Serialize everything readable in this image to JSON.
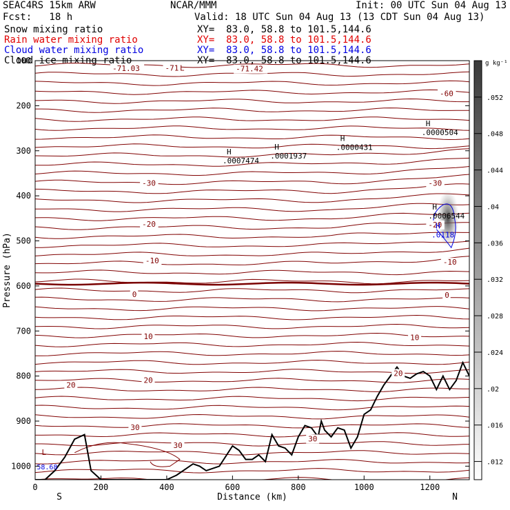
{
  "header": {
    "model": "SEAC4RS 15km ARW",
    "org": "NCAR/MMM",
    "init": "Init: 00 UTC Sun 04 Aug 13",
    "fcst": "Fcst:   18 h",
    "valid": "Valid: 18 UTC Sun 04 Aug 13 (13 CDT Sun 04 Aug 13)",
    "fields": [
      {
        "name": "Snow mixing ratio",
        "xy": "XY=  83.0, 58.8 to 101.5,144.6",
        "color": "#000000"
      },
      {
        "name": "Rain water mixing ratio",
        "xy": "XY=  83.0, 58.8 to 101.5,144.6",
        "color": "#e00000"
      },
      {
        "name": "Cloud water mixing ratio",
        "xy": "XY=  83.0, 58.8 to 101.5,144.6",
        "color": "#0000e0"
      },
      {
        "name": "Cloud ice mixing ratio",
        "xy": "XY=  83.0, 58.8 to 101.5,144.6",
        "color": "#000000"
      }
    ]
  },
  "chart_data": {
    "type": "cross-section",
    "xlabel": "Distance (km)",
    "ylabel": "Pressure (hPa)",
    "xlim": [
      0,
      1320
    ],
    "ylim": [
      1030,
      100
    ],
    "x_ticks": [
      0,
      200,
      400,
      600,
      800,
      1000,
      1200
    ],
    "y_ticks": [
      100,
      200,
      300,
      400,
      500,
      600,
      700,
      800,
      900,
      1000
    ],
    "direction_labels": {
      "left": "S",
      "right": "N"
    },
    "colorbar": {
      "unit": "g kg⁻¹",
      "ticks": [
        ".012",
        ".016",
        ".02",
        ".024",
        ".028",
        ".032",
        ".036",
        ".04",
        ".044",
        ".048",
        ".052"
      ],
      "range": [
        0.01,
        0.056
      ]
    },
    "temperature_contour_labels": [
      {
        "text": "-71.03",
        "x": 235,
        "p": 123
      },
      {
        "text": "-71",
        "x": 395,
        "p": 122
      },
      {
        "text": "-71.42",
        "x": 610,
        "p": 124
      },
      {
        "text": "-60",
        "x": 1230,
        "p": 179
      },
      {
        "text": "-30",
        "x": 325,
        "p": 378
      },
      {
        "text": "-30",
        "x": 1195,
        "p": 378
      },
      {
        "text": "-20",
        "x": 325,
        "p": 469
      },
      {
        "text": "-20",
        "x": 1195,
        "p": 470
      },
      {
        "text": "-10",
        "x": 335,
        "p": 550
      },
      {
        "text": "-10",
        "x": 1240,
        "p": 553
      },
      {
        "text": "0",
        "x": 295,
        "p": 625
      },
      {
        "text": "0",
        "x": 1245,
        "p": 626
      },
      {
        "text": "10",
        "x": 330,
        "p": 718
      },
      {
        "text": "10",
        "x": 1140,
        "p": 720
      },
      {
        "text": "20",
        "x": 95,
        "p": 826
      },
      {
        "text": "20",
        "x": 330,
        "p": 815
      },
      {
        "text": "20",
        "x": 1090,
        "p": 800
      },
      {
        "text": "30",
        "x": 290,
        "p": 920
      },
      {
        "text": "30",
        "x": 420,
        "p": 960
      },
      {
        "text": "30",
        "x": 830,
        "p": 945
      }
    ],
    "maxima_labels": [
      {
        "text": ".0007474",
        "x": 570,
        "p": 328
      },
      {
        "text": ".0001937",
        "x": 715,
        "p": 317
      },
      {
        "text": ".0000431",
        "x": 915,
        "p": 298
      },
      {
        "text": ".0000504",
        "x": 1175,
        "p": 265
      },
      {
        "text": ".0006544",
        "x": 1195,
        "p": 450
      },
      {
        "text": ".0118",
        "x": 1205,
        "p": 492
      }
    ],
    "low_labels": [
      {
        "text": "L",
        "x": 440,
        "p": 122
      },
      {
        "text": "L",
        "x": 20,
        "p": 975
      }
    ],
    "minima_values": [
      {
        "text": "58.68",
        "x": 5,
        "p": 1007
      }
    ],
    "terrain": {
      "x": [
        0,
        30,
        60,
        90,
        120,
        150,
        170,
        200,
        240,
        280,
        320,
        360,
        400,
        430,
        460,
        480,
        500,
        520,
        560,
        600,
        620,
        640,
        660,
        680,
        700,
        720,
        740,
        760,
        780,
        800,
        820,
        840,
        860,
        870,
        880,
        900,
        920,
        940,
        960,
        980,
        1000,
        1020,
        1040,
        1060,
        1080,
        1100,
        1120,
        1140,
        1160,
        1180,
        1200,
        1220,
        1240,
        1260,
        1280,
        1300,
        1320
      ],
      "p": [
        1030,
        1030,
        1010,
        980,
        940,
        930,
        1010,
        1030,
        1030,
        1030,
        1030,
        1030,
        1030,
        1020,
        1005,
        995,
        1000,
        1010,
        1000,
        955,
        965,
        985,
        985,
        975,
        990,
        930,
        955,
        960,
        975,
        935,
        910,
        915,
        935,
        900,
        920,
        935,
        915,
        920,
        960,
        935,
        885,
        875,
        845,
        820,
        800,
        780,
        800,
        805,
        795,
        790,
        800,
        830,
        800,
        830,
        810,
        770,
        800
      ]
    },
    "cloud_max": {
      "x": 1255,
      "p": 450,
      "value": 0.054
    }
  }
}
